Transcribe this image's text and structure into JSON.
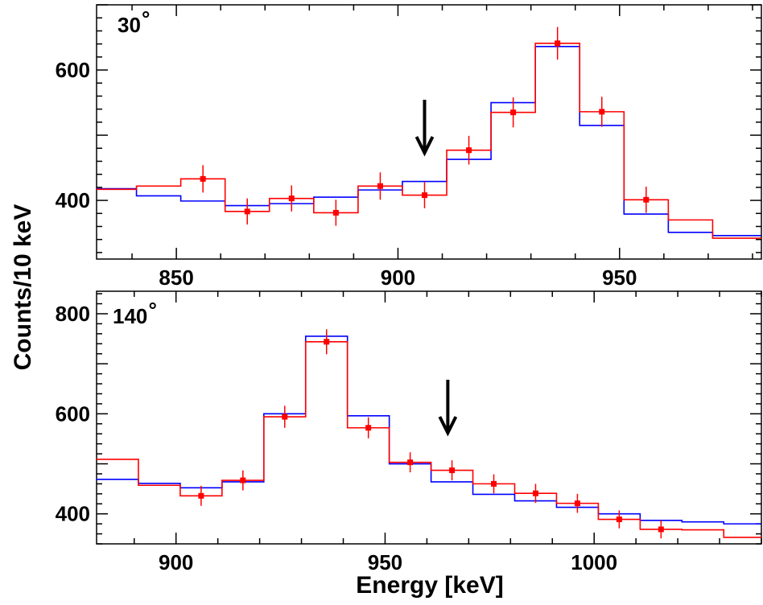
{
  "ylabel": "Counts/10 keV",
  "xlabel": "Energy [keV]",
  "colors": {
    "data": "#ff0000",
    "model": "#0000ff",
    "axis": "#000000"
  },
  "chart_data": [
    {
      "type": "step",
      "panel_label": "30",
      "panel_unit": "°",
      "xlim": [
        832,
        982
      ],
      "ylim": [
        310,
        700
      ],
      "xticks": [
        850,
        900,
        950
      ],
      "yticks": [
        400,
        600
      ],
      "arrow_at": 906,
      "bin_edges": [
        832,
        841,
        851,
        861,
        871,
        881,
        891,
        901,
        911,
        921,
        931,
        941,
        951,
        961,
        971,
        982
      ],
      "series": [
        {
          "name": "",
          "color": "#ff0000",
          "values": [
            417,
            422,
            433,
            383,
            403,
            381,
            422,
            408,
            477,
            535,
            641,
            536,
            401,
            370,
            342
          ],
          "errors": [
            0,
            0,
            21,
            20,
            20,
            20,
            21,
            20,
            22,
            23,
            25,
            23,
            20,
            0,
            0
          ]
        },
        {
          "name": "",
          "color": "#0000ff",
          "values": [
            418,
            407,
            399,
            392,
            395,
            405,
            416,
            429,
            463,
            550,
            636,
            515,
            379,
            351,
            346
          ]
        }
      ]
    },
    {
      "type": "step",
      "panel_label": "140",
      "panel_unit": "°",
      "xlim": [
        881,
        1040
      ],
      "ylim": [
        340,
        845
      ],
      "xticks": [
        900,
        950,
        1000
      ],
      "yticks": [
        400,
        600,
        800
      ],
      "arrow_at": 965,
      "bin_edges": [
        881,
        891,
        901,
        911,
        921,
        931,
        941,
        951,
        961,
        971,
        981,
        991,
        1001,
        1011,
        1021,
        1031,
        1040
      ],
      "series": [
        {
          "name": "",
          "color": "#ff0000",
          "values": [
            509,
            457,
            436,
            467,
            594,
            744,
            572,
            503,
            487,
            460,
            441,
            421,
            389,
            369,
            368,
            353
          ],
          "errors": [
            0,
            0,
            20,
            20,
            22,
            25,
            21,
            20,
            20,
            19,
            19,
            19,
            18,
            18,
            0,
            0
          ]
        },
        {
          "name": "",
          "color": "#0000ff",
          "values": [
            469,
            461,
            452,
            464,
            600,
            755,
            596,
            500,
            464,
            439,
            426,
            413,
            400,
            387,
            384,
            380
          ]
        }
      ]
    }
  ]
}
